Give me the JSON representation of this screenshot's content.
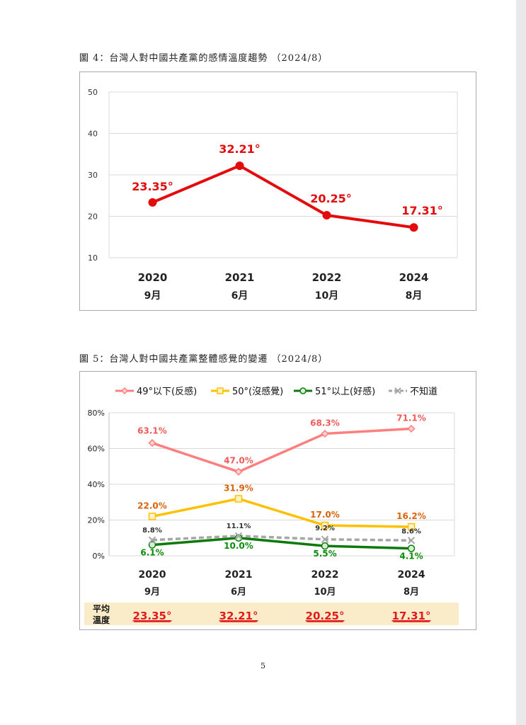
{
  "figure4": {
    "caption": "圖 4：台灣人對中國共產黨的感情溫度趨勢 （2024/8）"
  },
  "figure5": {
    "caption": "圖 5：台灣人對中國共產黨整體感覺的變遷 （2024/8）",
    "avg_label_line1": "平均",
    "avg_label_line2": "溫度",
    "avg_values": [
      "23.35°",
      "32.21°",
      "20.25°",
      "17.31°"
    ],
    "avg_color": "#e31a1c",
    "avg_band_color": "#fbecc9"
  },
  "page_number": "5",
  "chart_data": [
    {
      "type": "line",
      "categories": [
        [
          "2020",
          "9月"
        ],
        [
          "2021",
          "6月"
        ],
        [
          "2022",
          "10月"
        ],
        [
          "2024",
          "8月"
        ]
      ],
      "ylim": [
        10,
        50
      ],
      "yticks": [
        "10",
        "20",
        "30",
        "40",
        "50"
      ],
      "grid": true,
      "series": [
        {
          "values": [
            23.35,
            32.21,
            20.25,
            17.31
          ],
          "labels": [
            "23.35°",
            "32.21°",
            "20.25°",
            "17.31°"
          ],
          "color": "#e30b0b"
        }
      ]
    },
    {
      "type": "line",
      "categories": [
        [
          "2020",
          "9月"
        ],
        [
          "2021",
          "6月"
        ],
        [
          "2022",
          "10月"
        ],
        [
          "2024",
          "8月"
        ]
      ],
      "ylim": [
        0,
        80
      ],
      "yticks": [
        "0%",
        "20%",
        "40%",
        "60%",
        "80%"
      ],
      "grid": true,
      "legend": "top",
      "series": [
        {
          "name": "49°以下(反感)",
          "values": [
            63.1,
            47.0,
            68.3,
            71.1
          ],
          "labels": [
            "63.1%",
            "47.0%",
            "68.3%",
            "71.1%"
          ],
          "color": "#ff7f7f",
          "label_color": "#ef5a5a",
          "marker": "diamond",
          "dashed": false
        },
        {
          "name": "50°(沒感覺)",
          "values": [
            22.0,
            31.9,
            17.0,
            16.2
          ],
          "labels": [
            "22.0%",
            "31.9%",
            "17.0%",
            "16.2%"
          ],
          "color": "#ffc000",
          "label_color": "#d9630b",
          "marker": "square",
          "dashed": false
        },
        {
          "name": "51°以上(好感)",
          "values": [
            6.1,
            10.0,
            5.5,
            4.1
          ],
          "labels": [
            "6.1%",
            "10.0%",
            "5.5%",
            "4.1%"
          ],
          "color": "#0b7a0b",
          "label_color": "#0b8c0b",
          "marker": "circle",
          "dashed": false
        },
        {
          "name": "不知道",
          "values": [
            8.8,
            11.1,
            9.2,
            8.6
          ],
          "labels": [
            "8.8%",
            "11.1%",
            "9.2%",
            "8.6%"
          ],
          "color": "#a6a6a6",
          "label_color": "#333333",
          "marker": "x",
          "dashed": true
        }
      ]
    }
  ]
}
